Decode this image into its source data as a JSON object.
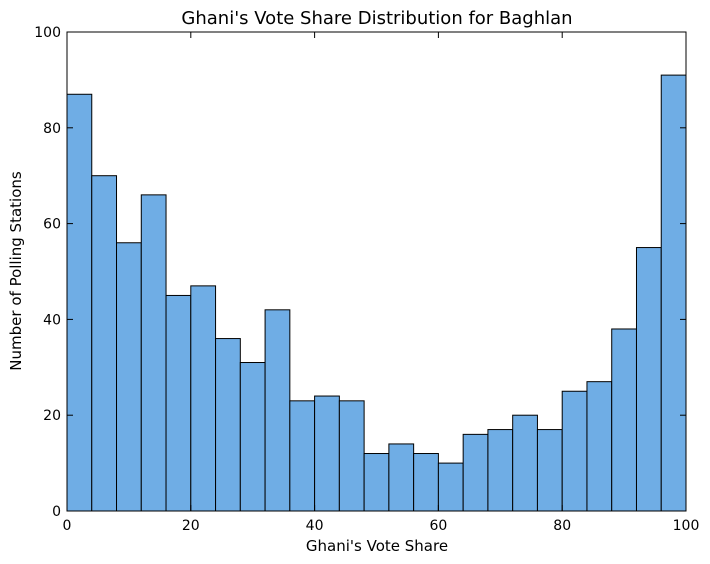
{
  "chart_data": {
    "type": "bar",
    "title": "Ghani's Vote Share Distribution for Baghlan",
    "xlabel": "Ghani's Vote Share",
    "ylabel": "Number of Polling Stations",
    "xlim": [
      0,
      100
    ],
    "ylim": [
      0,
      100
    ],
    "xticks": [
      0,
      20,
      40,
      60,
      80,
      100
    ],
    "yticks": [
      0,
      20,
      40,
      60,
      80,
      100
    ],
    "bin_edges": [
      0,
      4,
      8,
      12,
      16,
      20,
      24,
      28,
      32,
      36,
      40,
      44,
      48,
      52,
      56,
      60,
      64,
      68,
      72,
      76,
      80,
      84,
      88,
      92,
      96,
      100
    ],
    "values": [
      87,
      70,
      56,
      66,
      45,
      47,
      36,
      31,
      42,
      23,
      24,
      23,
      12,
      14,
      12,
      10,
      16,
      17,
      20,
      17,
      25,
      27,
      38,
      55,
      91
    ],
    "bar_color": "#6fade5",
    "edge_color": "#000000",
    "grid": false
  }
}
